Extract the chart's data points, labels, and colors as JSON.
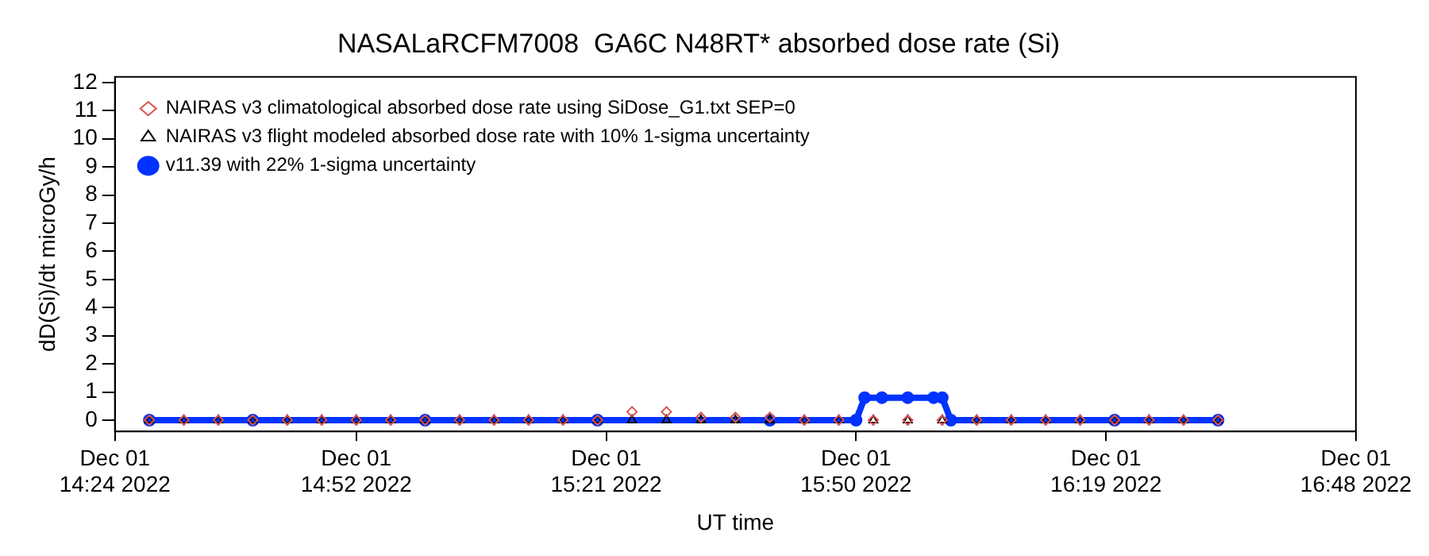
{
  "chart_data": {
    "type": "line",
    "title": "NASALaRCFM7008  GA6C N48RT* absorbed dose rate (Si)",
    "xlabel": "UT time",
    "ylabel": "dD(Si)/dt microGy/h",
    "xlim": [
      "2022-12-01T14:24",
      "2022-12-01T16:48"
    ],
    "xticks": [
      {
        "value": "2022-12-01T14:24",
        "label": "Dec 01\n14:24 2022"
      },
      {
        "value": "2022-12-01T14:52",
        "label": "Dec 01\n14:52 2022"
      },
      {
        "value": "2022-12-01T15:21",
        "label": "Dec 01\n15:21 2022"
      },
      {
        "value": "2022-12-01T15:50",
        "label": "Dec 01\n15:50 2022"
      },
      {
        "value": "2022-12-01T16:19",
        "label": "Dec 01\n16:19 2022"
      },
      {
        "value": "2022-12-01T16:48",
        "label": "Dec 01\n16:48 2022"
      }
    ],
    "ylim": [
      -0.4,
      12.2
    ],
    "yticks": [
      0,
      1,
      2,
      3,
      4,
      5,
      6,
      7,
      8,
      9,
      10,
      11,
      12
    ],
    "grid": false,
    "legend": "top left",
    "series": [
      {
        "name": "NAIRAS v3 climatological absorbed dose rate using SiDose_G1.txt SEP=0",
        "type": "scatter",
        "marker": "diamond",
        "color": "#d9534f",
        "x": [
          "2022-12-01T14:28",
          "2022-12-01T14:32",
          "2022-12-01T14:36",
          "2022-12-01T14:40",
          "2022-12-01T14:44",
          "2022-12-01T14:48",
          "2022-12-01T14:52",
          "2022-12-01T14:56",
          "2022-12-01T15:00",
          "2022-12-01T15:04",
          "2022-12-01T15:08",
          "2022-12-01T15:12",
          "2022-12-01T15:16",
          "2022-12-01T15:20",
          "2022-12-01T15:24",
          "2022-12-01T15:28",
          "2022-12-01T15:32",
          "2022-12-01T15:36",
          "2022-12-01T15:40",
          "2022-12-01T15:44",
          "2022-12-01T15:48",
          "2022-12-01T15:52",
          "2022-12-01T15:56",
          "2022-12-01T16:00",
          "2022-12-01T16:04",
          "2022-12-01T16:08",
          "2022-12-01T16:12",
          "2022-12-01T16:16",
          "2022-12-01T16:20",
          "2022-12-01T16:24",
          "2022-12-01T16:28",
          "2022-12-01T16:32"
        ],
        "values": [
          0,
          0,
          0,
          0,
          0,
          0,
          0,
          0,
          0,
          0,
          0,
          0,
          0,
          0,
          0.3,
          0.3,
          0.1,
          0.1,
          0.1,
          0,
          0,
          0,
          0,
          0,
          0,
          0,
          0,
          0,
          0,
          0,
          0,
          0
        ]
      },
      {
        "name": "NAIRAS v3 flight modeled absorbed dose rate with 10% 1-sigma uncertainty",
        "type": "scatter",
        "marker": "triangle",
        "color": "#000000",
        "x": [
          "2022-12-01T14:28",
          "2022-12-01T14:32",
          "2022-12-01T14:36",
          "2022-12-01T14:40",
          "2022-12-01T14:44",
          "2022-12-01T14:48",
          "2022-12-01T14:52",
          "2022-12-01T14:56",
          "2022-12-01T15:00",
          "2022-12-01T15:04",
          "2022-12-01T15:08",
          "2022-12-01T15:12",
          "2022-12-01T15:16",
          "2022-12-01T15:20",
          "2022-12-01T15:24",
          "2022-12-01T15:28",
          "2022-12-01T15:32",
          "2022-12-01T15:36",
          "2022-12-01T15:40",
          "2022-12-01T15:44",
          "2022-12-01T15:48",
          "2022-12-01T15:52",
          "2022-12-01T15:56",
          "2022-12-01T16:00",
          "2022-12-01T16:04",
          "2022-12-01T16:08",
          "2022-12-01T16:12",
          "2022-12-01T16:16",
          "2022-12-01T16:20",
          "2022-12-01T16:24",
          "2022-12-01T16:28",
          "2022-12-01T16:32"
        ],
        "values": [
          0,
          0,
          0,
          0,
          0,
          0,
          0,
          0,
          0,
          0,
          0,
          0,
          0,
          0,
          0,
          0,
          0,
          0,
          0,
          0,
          0,
          0,
          0,
          0,
          0,
          0,
          0,
          0,
          0,
          0,
          0,
          0
        ]
      },
      {
        "name": "v11.39 with 22% 1-sigma uncertainty",
        "type": "line",
        "marker": "circle",
        "line_style": "solid",
        "color": "#0033ff",
        "x": [
          "2022-12-01T14:28",
          "2022-12-01T14:40",
          "2022-12-01T15:00",
          "2022-12-01T15:20",
          "2022-12-01T15:40",
          "2022-12-01T15:50",
          "2022-12-01T15:51",
          "2022-12-01T15:53",
          "2022-12-01T15:56",
          "2022-12-01T15:59",
          "2022-12-01T16:00",
          "2022-12-01T16:01",
          "2022-12-01T16:20",
          "2022-12-01T16:32"
        ],
        "values": [
          0,
          0,
          0,
          0,
          0,
          0,
          0.8,
          0.8,
          0.8,
          0.8,
          0.8,
          0,
          0,
          0
        ]
      }
    ]
  }
}
